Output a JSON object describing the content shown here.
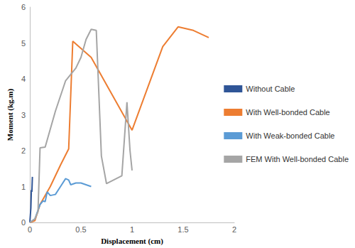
{
  "chart_data": {
    "type": "line",
    "x_label": "Displacement (cm)",
    "y_label": "Moment (kg.m)",
    "xlim": [
      0,
      2
    ],
    "xticks": [
      0,
      0.5,
      1,
      1.5,
      2
    ],
    "ylim": [
      0,
      6
    ],
    "yticks": [
      0,
      1,
      2,
      3,
      4,
      5,
      6
    ],
    "grid": false,
    "legend": "right",
    "series": [
      {
        "name": "Without Cable",
        "color": "#2f5597",
        "x": [
          0,
          0.01,
          0.015,
          0.02,
          0.025
        ],
        "values": [
          0,
          0.4,
          0.9,
          0.85,
          1.27
        ]
      },
      {
        "name": "With Well-bonded Cable",
        "color": "#ed7d31",
        "x": [
          0,
          0.05,
          0.1,
          0.2,
          0.3,
          0.38,
          0.42,
          0.6,
          1.0,
          1.3,
          1.45,
          1.6,
          1.75
        ],
        "values": [
          0,
          0.05,
          0.5,
          1.0,
          1.6,
          2.05,
          5.05,
          4.6,
          2.57,
          4.9,
          5.45,
          5.35,
          5.15
        ]
      },
      {
        "name": "With Weak-bonded Cable",
        "color": "#5b9bd5",
        "x": [
          0,
          0.05,
          0.1,
          0.13,
          0.15,
          0.17,
          0.2,
          0.25,
          0.3,
          0.35,
          0.38,
          0.4,
          0.45,
          0.5,
          0.6
        ],
        "values": [
          0,
          0.1,
          0.5,
          0.6,
          0.58,
          0.85,
          0.75,
          0.78,
          1.0,
          1.22,
          1.18,
          1.05,
          1.1,
          1.1,
          1.0
        ]
      },
      {
        "name": "FEM With Well-bonded Cable",
        "color": "#a5a5a5",
        "x": [
          0,
          0.05,
          0.08,
          0.1,
          0.15,
          0.25,
          0.35,
          0.45,
          0.5,
          0.55,
          0.6,
          0.65,
          0.7,
          0.75,
          0.9,
          0.95,
          0.98,
          1.0
        ],
        "values": [
          0,
          0.1,
          0.3,
          2.08,
          2.1,
          3.1,
          3.95,
          4.3,
          4.6,
          5.1,
          5.38,
          5.35,
          1.85,
          1.08,
          1.3,
          3.35,
          2.0,
          1.45
        ]
      }
    ]
  }
}
